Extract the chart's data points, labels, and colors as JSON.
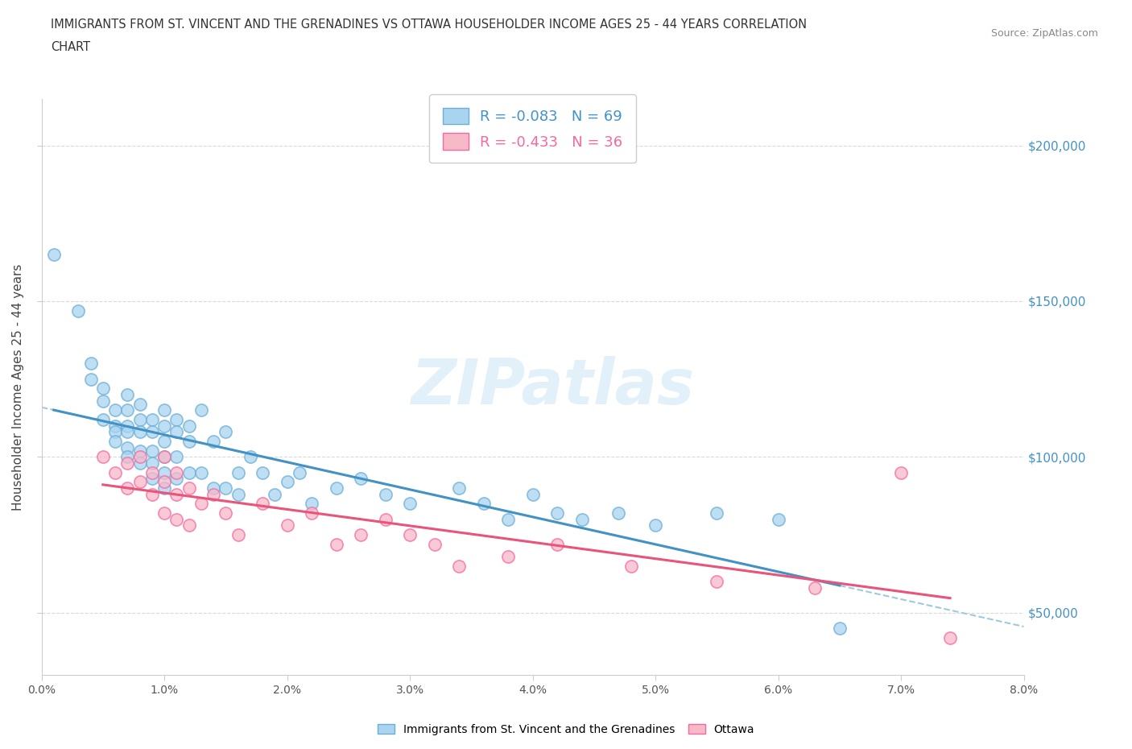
{
  "title_line1": "IMMIGRANTS FROM ST. VINCENT AND THE GRENADINES VS OTTAWA HOUSEHOLDER INCOME AGES 25 - 44 YEARS CORRELATION",
  "title_line2": "CHART",
  "source": "Source: ZipAtlas.com",
  "ylabel": "Householder Income Ages 25 - 44 years",
  "blue_label": "Immigrants from St. Vincent and the Grenadines",
  "pink_label": "Ottawa",
  "legend_blue_R": "R = -0.083",
  "legend_blue_N": "N = 69",
  "legend_pink_R": "R = -0.433",
  "legend_pink_N": "N = 36",
  "watermark": "ZIPatlas",
  "blue_color": "#a8d4f0",
  "pink_color": "#f7b8c8",
  "blue_edge_color": "#6baed6",
  "pink_edge_color": "#f768a1",
  "blue_line_color": "#4292c6",
  "pink_line_color": "#e8547a",
  "blue_dash_color": "#9ecae1",
  "x_min": 0.0,
  "x_max": 0.08,
  "y_min": 30000,
  "y_max": 215000,
  "blue_scatter_x": [
    0.001,
    0.003,
    0.004,
    0.004,
    0.005,
    0.005,
    0.005,
    0.006,
    0.006,
    0.006,
    0.006,
    0.007,
    0.007,
    0.007,
    0.007,
    0.007,
    0.007,
    0.008,
    0.008,
    0.008,
    0.008,
    0.008,
    0.009,
    0.009,
    0.009,
    0.009,
    0.009,
    0.01,
    0.01,
    0.01,
    0.01,
    0.01,
    0.01,
    0.011,
    0.011,
    0.011,
    0.011,
    0.012,
    0.012,
    0.012,
    0.013,
    0.013,
    0.014,
    0.014,
    0.015,
    0.015,
    0.016,
    0.016,
    0.017,
    0.018,
    0.019,
    0.02,
    0.021,
    0.022,
    0.024,
    0.026,
    0.028,
    0.03,
    0.034,
    0.036,
    0.038,
    0.04,
    0.042,
    0.044,
    0.047,
    0.05,
    0.055,
    0.06,
    0.065
  ],
  "blue_scatter_y": [
    165000,
    147000,
    130000,
    125000,
    122000,
    118000,
    112000,
    115000,
    110000,
    108000,
    105000,
    120000,
    115000,
    110000,
    108000,
    103000,
    100000,
    117000,
    112000,
    108000,
    102000,
    98000,
    112000,
    108000,
    102000,
    98000,
    93000,
    115000,
    110000,
    105000,
    100000,
    95000,
    90000,
    112000,
    108000,
    100000,
    93000,
    110000,
    105000,
    95000,
    115000,
    95000,
    105000,
    90000,
    108000,
    90000,
    95000,
    88000,
    100000,
    95000,
    88000,
    92000,
    95000,
    85000,
    90000,
    93000,
    88000,
    85000,
    90000,
    85000,
    80000,
    88000,
    82000,
    80000,
    82000,
    78000,
    82000,
    80000,
    45000
  ],
  "pink_scatter_x": [
    0.005,
    0.006,
    0.007,
    0.007,
    0.008,
    0.008,
    0.009,
    0.009,
    0.01,
    0.01,
    0.01,
    0.011,
    0.011,
    0.011,
    0.012,
    0.012,
    0.013,
    0.014,
    0.015,
    0.016,
    0.018,
    0.02,
    0.022,
    0.024,
    0.026,
    0.028,
    0.03,
    0.032,
    0.034,
    0.038,
    0.042,
    0.048,
    0.055,
    0.063,
    0.07,
    0.074
  ],
  "pink_scatter_y": [
    100000,
    95000,
    98000,
    90000,
    100000,
    92000,
    95000,
    88000,
    100000,
    92000,
    82000,
    95000,
    88000,
    80000,
    90000,
    78000,
    85000,
    88000,
    82000,
    75000,
    85000,
    78000,
    82000,
    72000,
    75000,
    80000,
    75000,
    72000,
    65000,
    68000,
    72000,
    65000,
    60000,
    58000,
    95000,
    42000
  ],
  "ytick_labels": [
    "$50,000",
    "$100,000",
    "$150,000",
    "$200,000"
  ],
  "ytick_values": [
    50000,
    100000,
    150000,
    200000
  ],
  "bg_color": "#ffffff",
  "grid_color": "#d0d0d0"
}
